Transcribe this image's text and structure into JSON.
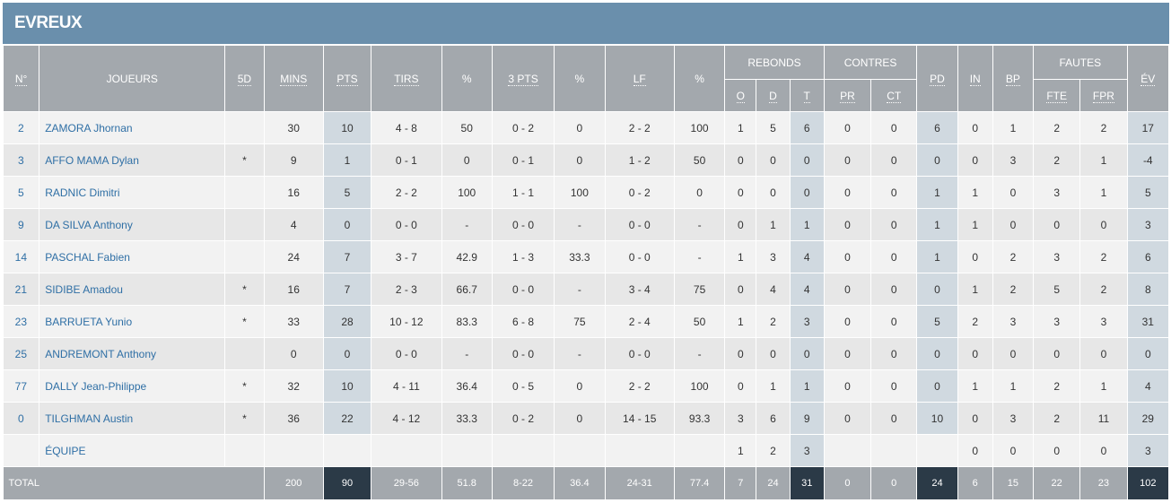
{
  "team": "EVREUX",
  "headers": {
    "num": "N°",
    "player": "JOUEURS",
    "five": "5D",
    "mins": "MINS",
    "pts": "PTS",
    "shots": "TIRS",
    "pct": "%",
    "three": "3 PTS",
    "pct3": "%",
    "ft": "LF",
    "pctft": "%",
    "reb": "REBONDS",
    "reb_o": "O",
    "reb_d": "D",
    "reb_t": "T",
    "blk": "CONTRES",
    "blk_pr": "PR",
    "blk_ct": "CT",
    "ast": "PD",
    "stl": "IN",
    "to": "BP",
    "fouls": "FAUTES",
    "fouls_fte": "FTE",
    "fouls_fpr": "FPR",
    "eff": "ÉV"
  },
  "players": [
    {
      "num": "2",
      "name": "ZAMORA Jhornan",
      "five": "",
      "mins": "30",
      "pts": "10",
      "shots": "4 - 8",
      "pct": "50",
      "three": "0 - 2",
      "pct3": "0",
      "ft": "2 - 2",
      "pctft": "100",
      "o": "1",
      "d": "5",
      "t": "6",
      "pr": "0",
      "ct": "0",
      "pd": "6",
      "in": "0",
      "bp": "1",
      "fte": "2",
      "fpr": "2",
      "ev": "17"
    },
    {
      "num": "3",
      "name": "AFFO MAMA Dylan",
      "five": "*",
      "mins": "9",
      "pts": "1",
      "shots": "0 - 1",
      "pct": "0",
      "three": "0 - 1",
      "pct3": "0",
      "ft": "1 - 2",
      "pctft": "50",
      "o": "0",
      "d": "0",
      "t": "0",
      "pr": "0",
      "ct": "0",
      "pd": "0",
      "in": "0",
      "bp": "3",
      "fte": "2",
      "fpr": "1",
      "ev": "-4"
    },
    {
      "num": "5",
      "name": "RADNIC Dimitri",
      "five": "",
      "mins": "16",
      "pts": "5",
      "shots": "2 - 2",
      "pct": "100",
      "three": "1 - 1",
      "pct3": "100",
      "ft": "0 - 2",
      "pctft": "0",
      "o": "0",
      "d": "0",
      "t": "0",
      "pr": "0",
      "ct": "0",
      "pd": "1",
      "in": "1",
      "bp": "0",
      "fte": "3",
      "fpr": "1",
      "ev": "5"
    },
    {
      "num": "9",
      "name": "DA SILVA Anthony",
      "five": "",
      "mins": "4",
      "pts": "0",
      "shots": "0 - 0",
      "pct": "-",
      "three": "0 - 0",
      "pct3": "-",
      "ft": "0 - 0",
      "pctft": "-",
      "o": "0",
      "d": "1",
      "t": "1",
      "pr": "0",
      "ct": "0",
      "pd": "1",
      "in": "1",
      "bp": "0",
      "fte": "0",
      "fpr": "0",
      "ev": "3"
    },
    {
      "num": "14",
      "name": "PASCHAL Fabien",
      "five": "",
      "mins": "24",
      "pts": "7",
      "shots": "3 - 7",
      "pct": "42.9",
      "three": "1 - 3",
      "pct3": "33.3",
      "ft": "0 - 0",
      "pctft": "-",
      "o": "1",
      "d": "3",
      "t": "4",
      "pr": "0",
      "ct": "0",
      "pd": "1",
      "in": "0",
      "bp": "2",
      "fte": "3",
      "fpr": "2",
      "ev": "6"
    },
    {
      "num": "21",
      "name": "SIDIBE Amadou",
      "five": "*",
      "mins": "16",
      "pts": "7",
      "shots": "2 - 3",
      "pct": "66.7",
      "three": "0 - 0",
      "pct3": "-",
      "ft": "3 - 4",
      "pctft": "75",
      "o": "0",
      "d": "4",
      "t": "4",
      "pr": "0",
      "ct": "0",
      "pd": "0",
      "in": "1",
      "bp": "2",
      "fte": "5",
      "fpr": "2",
      "ev": "8"
    },
    {
      "num": "23",
      "name": "BARRUETA Yunio",
      "five": "*",
      "mins": "33",
      "pts": "28",
      "shots": "10 - 12",
      "pct": "83.3",
      "three": "6 - 8",
      "pct3": "75",
      "ft": "2 - 4",
      "pctft": "50",
      "o": "1",
      "d": "2",
      "t": "3",
      "pr": "0",
      "ct": "0",
      "pd": "5",
      "in": "2",
      "bp": "3",
      "fte": "3",
      "fpr": "3",
      "ev": "31"
    },
    {
      "num": "25",
      "name": "ANDREMONT Anthony",
      "five": "",
      "mins": "0",
      "pts": "0",
      "shots": "0 - 0",
      "pct": "-",
      "three": "0 - 0",
      "pct3": "-",
      "ft": "0 - 0",
      "pctft": "-",
      "o": "0",
      "d": "0",
      "t": "0",
      "pr": "0",
      "ct": "0",
      "pd": "0",
      "in": "0",
      "bp": "0",
      "fte": "0",
      "fpr": "0",
      "ev": "0"
    },
    {
      "num": "77",
      "name": "DALLY Jean-Philippe",
      "five": "*",
      "mins": "32",
      "pts": "10",
      "shots": "4 - 11",
      "pct": "36.4",
      "three": "0 - 5",
      "pct3": "0",
      "ft": "2 - 2",
      "pctft": "100",
      "o": "0",
      "d": "1",
      "t": "1",
      "pr": "0",
      "ct": "0",
      "pd": "0",
      "in": "1",
      "bp": "1",
      "fte": "2",
      "fpr": "1",
      "ev": "4"
    },
    {
      "num": "0",
      "name": "TILGHMAN Austin",
      "five": "*",
      "mins": "36",
      "pts": "22",
      "shots": "4 - 12",
      "pct": "33.3",
      "three": "0 - 2",
      "pct3": "0",
      "ft": "14 - 15",
      "pctft": "93.3",
      "o": "3",
      "d": "6",
      "t": "9",
      "pr": "0",
      "ct": "0",
      "pd": "10",
      "in": "0",
      "bp": "3",
      "fte": "2",
      "fpr": "11",
      "ev": "29"
    }
  ],
  "team_row": {
    "name": "ÉQUIPE",
    "o": "1",
    "d": "2",
    "t": "3",
    "in": "0",
    "bp": "0",
    "fte": "0",
    "fpr": "0",
    "ev": "3"
  },
  "totals": {
    "label": "TOTAL",
    "mins": "200",
    "pts": "90",
    "shots": "29-56",
    "pct": "51.8",
    "three": "8-22",
    "pct3": "36.4",
    "ft": "24-31",
    "pctft": "77.4",
    "o": "7",
    "d": "24",
    "t": "31",
    "pr": "0",
    "ct": "0",
    "pd": "24",
    "in": "6",
    "bp": "15",
    "fte": "22",
    "fpr": "23",
    "ev": "102"
  }
}
